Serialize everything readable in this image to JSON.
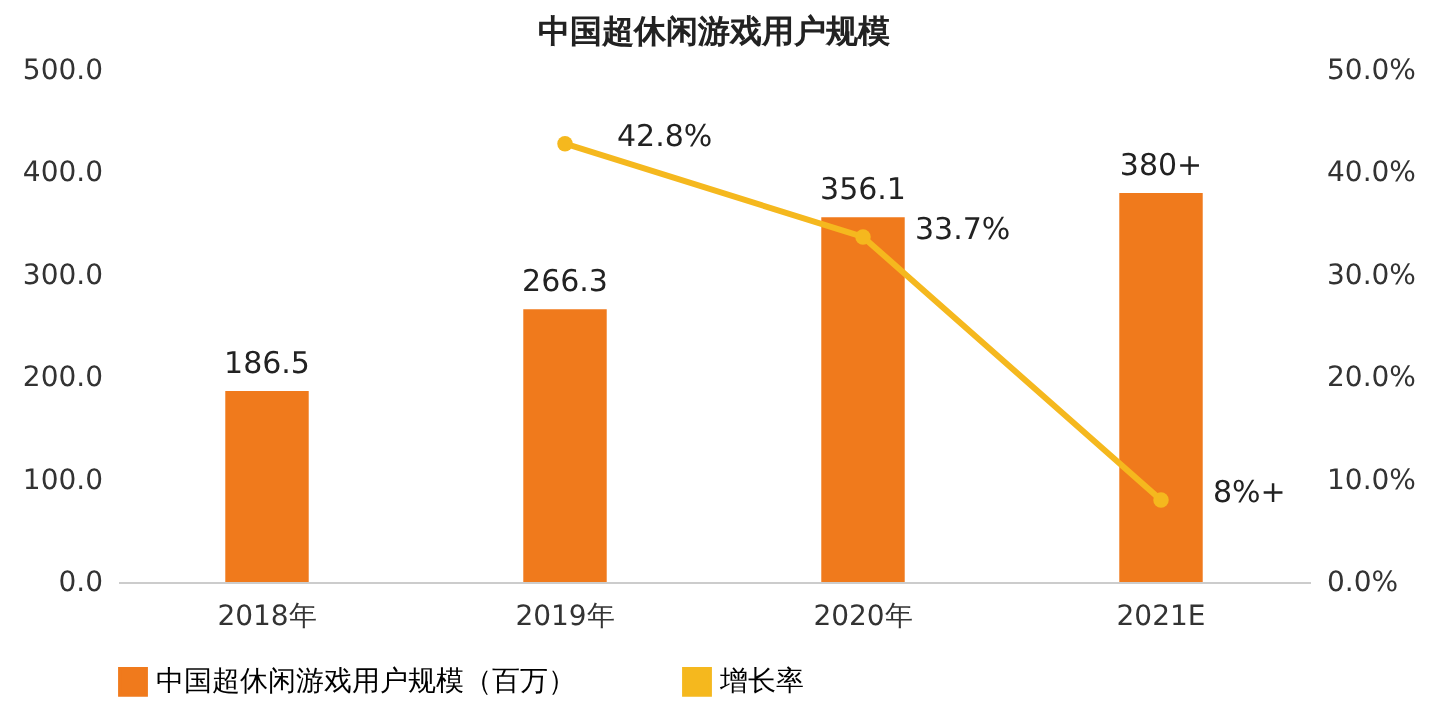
{
  "chart_data": {
    "type": "bar",
    "title": "中国超休闲游戏用户规模",
    "categories": [
      "2018年",
      "2019年",
      "2020年",
      "2021E"
    ],
    "series": [
      {
        "name": "中国超休闲游戏用户规模（百万）",
        "color": "#f07a1c",
        "values": [
          186.5,
          266.3,
          356.1,
          380
        ],
        "value_labels": [
          "186.5",
          "266.3",
          "356.1",
          "380+"
        ]
      },
      {
        "name": "增长率",
        "type": "line",
        "axis": "y2",
        "color": "#f5b81e",
        "values": [
          null,
          42.8,
          33.7,
          8
        ],
        "value_labels": [
          null,
          "42.8%",
          "33.7%",
          "8%+"
        ]
      }
    ],
    "ylim": [
      0,
      500
    ],
    "yticks": [
      {
        "value": 0,
        "label": "0.0"
      },
      {
        "value": 100,
        "label": "100.0"
      },
      {
        "value": 200,
        "label": "200.0"
      },
      {
        "value": 300,
        "label": "300.0"
      },
      {
        "value": 400,
        "label": "400.0"
      },
      {
        "value": 500,
        "label": "500.0"
      }
    ],
    "y2lim": [
      0,
      50
    ],
    "y2ticks": [
      {
        "value": 0,
        "label": "0.0%"
      },
      {
        "value": 10,
        "label": "10.0%"
      },
      {
        "value": 20,
        "label": "20.0%"
      },
      {
        "value": 30,
        "label": "30.0%"
      },
      {
        "value": 40,
        "label": "40.0%"
      },
      {
        "value": 50,
        "label": "50.0%"
      }
    ],
    "marker": "circle",
    "legend": "bottom"
  }
}
